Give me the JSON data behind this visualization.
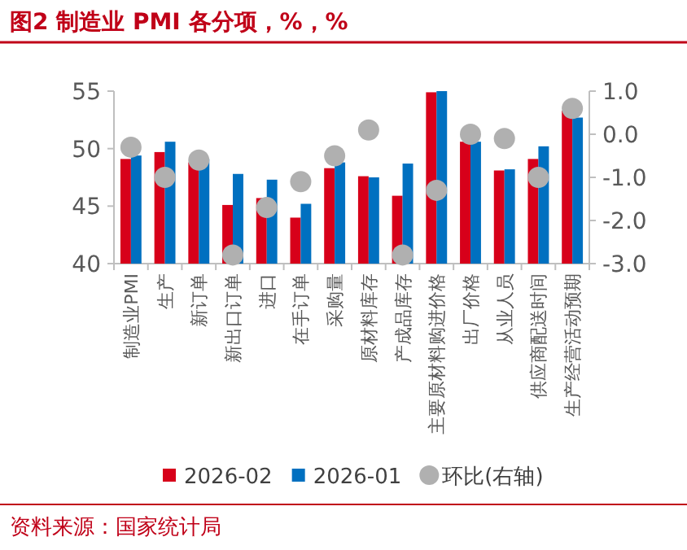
{
  "chart_data": {
    "type": "bar",
    "title": "图2  制造业 PMI 各分项，%，%",
    "categories": [
      "制造业PMI",
      "生产",
      "新订单",
      "新出口订单",
      "进口",
      "在手订单",
      "采购量",
      "原材料库存",
      "产成品库存",
      "主要原材料购进价格",
      "出厂价格",
      "从业人员",
      "供应商配送时间",
      "生产经营活动预期"
    ],
    "series": [
      {
        "name": "2026-02",
        "color": "#d7001a",
        "values": [
          49.1,
          49.7,
          48.8,
          45.1,
          45.7,
          44.0,
          48.3,
          47.6,
          45.9,
          54.9,
          50.6,
          48.1,
          49.1,
          53.3
        ]
      },
      {
        "name": "2026-01",
        "color": "#0070c0",
        "values": [
          49.4,
          50.6,
          49.1,
          47.8,
          47.3,
          45.2,
          48.8,
          47.5,
          48.7,
          55.0,
          50.6,
          48.2,
          50.2,
          52.7
        ]
      },
      {
        "name": "环比(右轴)",
        "type": "scatter",
        "axis": "y2",
        "color": "#b0b0b0",
        "marker": "circle",
        "values": [
          -0.3,
          -1.0,
          -0.6,
          -2.8,
          -1.7,
          -1.1,
          -0.5,
          0.1,
          -2.8,
          -1.3,
          0.0,
          -0.1,
          -1.0,
          0.6
        ]
      }
    ],
    "ylim": [
      40,
      55
    ],
    "yticks": [
      40,
      45,
      50,
      55
    ],
    "y2lim": [
      -3,
      1
    ],
    "y2ticks": [
      {
        "value": -3,
        "label": "-3.0"
      },
      {
        "value": -2,
        "label": "-2.0"
      },
      {
        "value": -1,
        "label": "-1.0"
      },
      {
        "value": 0,
        "label": "0.0"
      },
      {
        "value": 1,
        "label": "1.0"
      }
    ],
    "grid": false,
    "legend": "bottom",
    "annotations": [
      "资料来源：国家统计局"
    ]
  }
}
